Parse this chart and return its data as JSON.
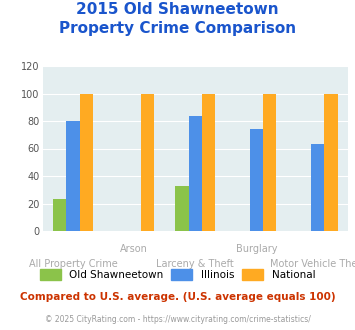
{
  "title_line1": "2015 Old Shawneetown",
  "title_line2": "Property Crime Comparison",
  "series": {
    "Old Shawneetown": [
      23,
      0,
      33,
      0,
      0
    ],
    "Illinois": [
      80,
      0,
      84,
      74,
      63
    ],
    "National": [
      100,
      100,
      100,
      100,
      100
    ]
  },
  "colors": {
    "Old Shawneetown": "#8bc34a",
    "Illinois": "#4d90e8",
    "National": "#ffaa22"
  },
  "ylim": [
    0,
    120
  ],
  "yticks": [
    0,
    20,
    40,
    60,
    80,
    100,
    120
  ],
  "background_color": "#ffffff",
  "plot_area_color": "#e4eef0",
  "title_color": "#1a55cc",
  "top_labels": [
    [
      1,
      "Arson"
    ],
    [
      3,
      "Burglary"
    ]
  ],
  "bottom_labels": [
    [
      0,
      "All Property Crime"
    ],
    [
      2,
      "Larceny & Theft"
    ],
    [
      4,
      "Motor Vehicle Theft"
    ]
  ],
  "footer_text": "Compared to U.S. average. (U.S. average equals 100)",
  "footer_color": "#cc3300",
  "copyright_text": "© 2025 CityRating.com - https://www.cityrating.com/crime-statistics/",
  "copyright_color": "#999999",
  "legend_labels": [
    "Old Shawneetown",
    "Illinois",
    "National"
  ]
}
